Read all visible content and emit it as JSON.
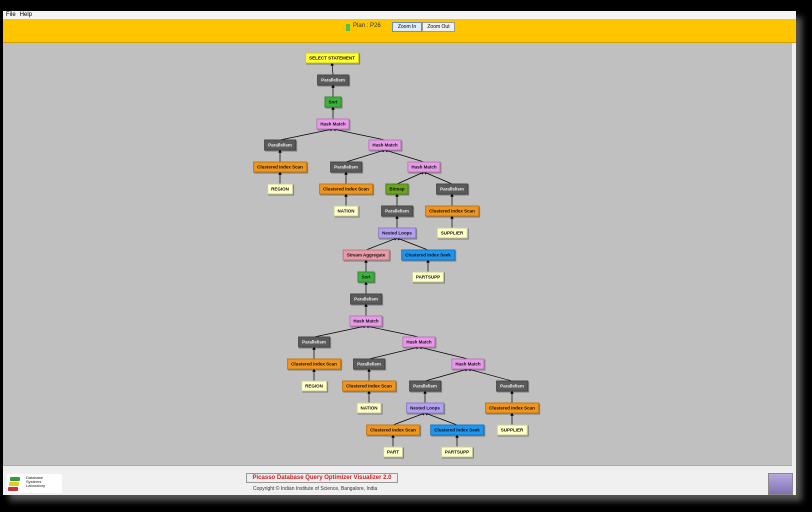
{
  "menu": {
    "items": [
      "File",
      "Help"
    ]
  },
  "toolbar": {
    "plan_label": "Plan : P26",
    "plan_color": "#4ec34e",
    "zoom_in_label": "Zoom In",
    "zoom_out_label": "Zoom Out"
  },
  "footer": {
    "title": "Picasso Database Query Optimizer Visualizer 2.0",
    "copyright": "Copyright © Indian Institute of Science, Bangalore, India",
    "lab_logo_text": "Database Systems Laboratory"
  },
  "node_colors": {
    "root": "#ffff33",
    "parallelism": "#5a5a5a",
    "sort": "#3db13d",
    "hash": "#e89ae8",
    "scan": "#f0961e",
    "table": "#ffffc8",
    "bitmap": "#6aa51e",
    "loops": "#b4a0f0",
    "aggregate": "#e89aa8",
    "seek": "#1e96f0"
  },
  "plan_tree": [
    {
      "label": "SELECT STATEMENT",
      "kind": "root",
      "parent": null
    },
    {
      "label": "Parallelism",
      "kind": "parallelism",
      "parent": 0
    },
    {
      "label": "Sort",
      "kind": "sort",
      "parent": 1
    },
    {
      "label": "Hash Match",
      "kind": "hash",
      "parent": 2
    },
    {
      "label": "Parallelism",
      "kind": "parallelism",
      "parent": 3
    },
    {
      "label": "Clustered Index Scan",
      "kind": "scan",
      "parent": 4
    },
    {
      "label": "REGION",
      "kind": "table",
      "parent": 5
    },
    {
      "label": "Hash Match",
      "kind": "hash",
      "parent": 3
    },
    {
      "label": "Parallelism",
      "kind": "parallelism",
      "parent": 7
    },
    {
      "label": "Clustered Index Scan",
      "kind": "scan",
      "parent": 8
    },
    {
      "label": "NATION",
      "kind": "table",
      "parent": 9
    },
    {
      "label": "Hash Match",
      "kind": "hash",
      "parent": 7
    },
    {
      "label": "Bitmap",
      "kind": "bitmap",
      "parent": 11
    },
    {
      "label": "Parallelism",
      "kind": "parallelism",
      "parent": 11
    },
    {
      "label": "Clustered Index Scan",
      "kind": "scan",
      "parent": 13
    },
    {
      "label": "SUPPLIER",
      "kind": "table",
      "parent": 14
    },
    {
      "label": "Parallelism",
      "kind": "parallelism",
      "parent": 12
    },
    {
      "label": "Nested Loops",
      "kind": "loops",
      "parent": 16
    },
    {
      "label": "Stream Aggregate",
      "kind": "aggregate",
      "parent": 17
    },
    {
      "label": "Clustered Index Seek",
      "kind": "seek",
      "parent": 17
    },
    {
      "label": "PARTSUPP",
      "kind": "table",
      "parent": 19
    },
    {
      "label": "Sort",
      "kind": "sort",
      "parent": 18
    },
    {
      "label": "Parallelism",
      "kind": "parallelism",
      "parent": 21
    },
    {
      "label": "Hash Match",
      "kind": "hash",
      "parent": 22
    },
    {
      "label": "Parallelism",
      "kind": "parallelism",
      "parent": 23
    },
    {
      "label": "Clustered Index Scan",
      "kind": "scan",
      "parent": 24
    },
    {
      "label": "REGION",
      "kind": "table",
      "parent": 25
    },
    {
      "label": "Hash Match",
      "kind": "hash",
      "parent": 23
    },
    {
      "label": "Parallelism",
      "kind": "parallelism",
      "parent": 27
    },
    {
      "label": "Clustered Index Scan",
      "kind": "scan",
      "parent": 28
    },
    {
      "label": "NATION",
      "kind": "table",
      "parent": 29
    },
    {
      "label": "Hash Match",
      "kind": "hash",
      "parent": 27
    },
    {
      "label": "Parallelism",
      "kind": "parallelism",
      "parent": 31
    },
    {
      "label": "Nested Loops",
      "kind": "loops",
      "parent": 32
    },
    {
      "label": "Clustered Index Scan",
      "kind": "scan",
      "parent": 33
    },
    {
      "label": "PART",
      "kind": "table",
      "parent": 34
    },
    {
      "label": "Clustered Index Seek",
      "kind": "seek",
      "parent": 33
    },
    {
      "label": "PARTSUPP",
      "kind": "table",
      "parent": 36
    },
    {
      "label": "Parallelism",
      "kind": "parallelism",
      "parent": 31
    },
    {
      "label": "Clustered Index Scan",
      "kind": "scan",
      "parent": 38
    },
    {
      "label": "SUPPLIER",
      "kind": "table",
      "parent": 39
    }
  ]
}
